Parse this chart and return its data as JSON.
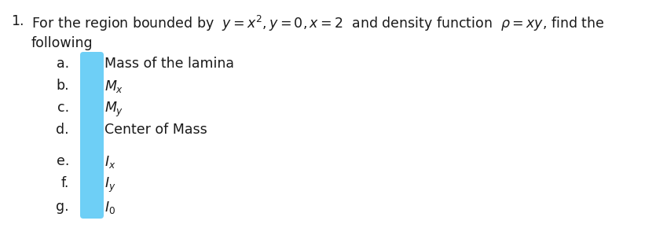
{
  "title_number": "1.",
  "line1": "For the region bounded by  $y=x^2, y=0, x=2$  and density function  $\\rho = xy$, find the",
  "line2": "following",
  "items_labels": [
    "a.",
    "b.",
    "c.",
    "d.",
    "e.",
    "f.",
    "g."
  ],
  "items_texts": [
    "Mass of the lamina",
    "$M_x$",
    "$M_y$",
    "Center of Mass",
    "$I_x$",
    "$I_y$",
    "$I_0$"
  ],
  "bar_color": "#6ecff6",
  "background_color": "#ffffff",
  "text_color": "#1a1a1a",
  "font_size": 12.5,
  "fig_width": 8.21,
  "fig_height": 3.04
}
